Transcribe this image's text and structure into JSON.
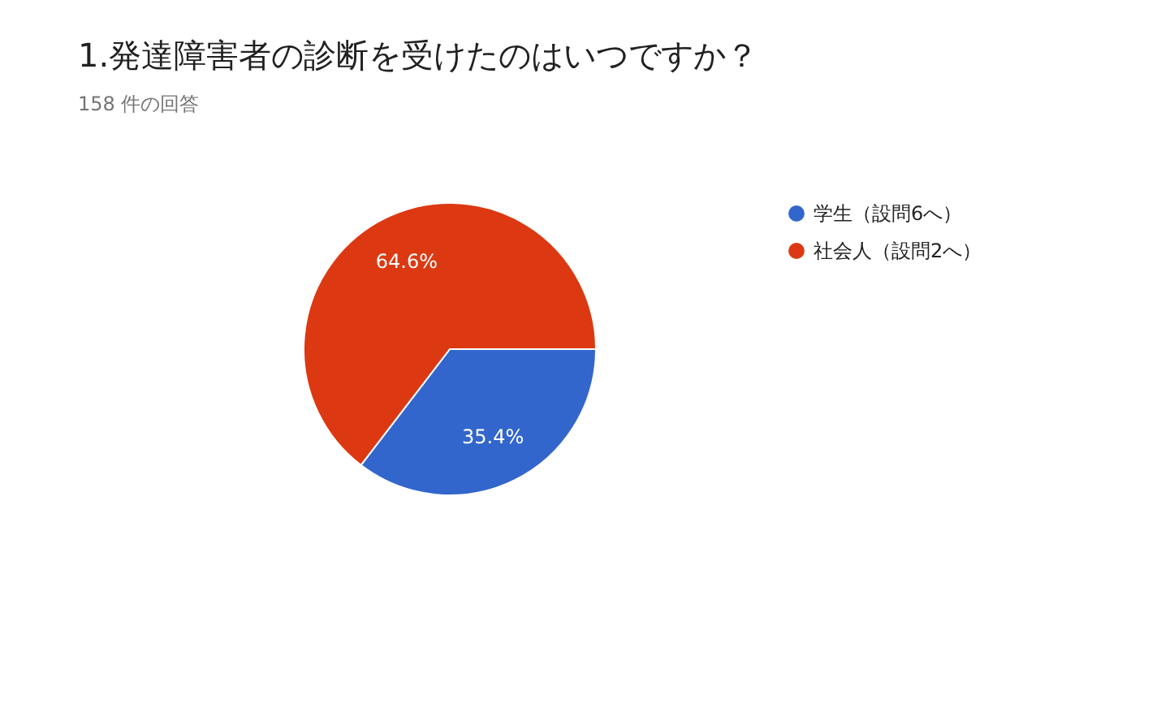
{
  "chart_data": {
    "type": "pie",
    "title": "1.発達障害者の診断を受けたのはいつですか？",
    "subtitle": "158 件の回答",
    "categories": [
      "学生（設問6へ）",
      "社会人（設問2へ）"
    ],
    "values": [
      35.4,
      64.6
    ],
    "colors": [
      "#3366cc",
      "#dc3912"
    ],
    "value_labels": [
      "35.4%",
      "64.6%"
    ],
    "legend": "right"
  }
}
